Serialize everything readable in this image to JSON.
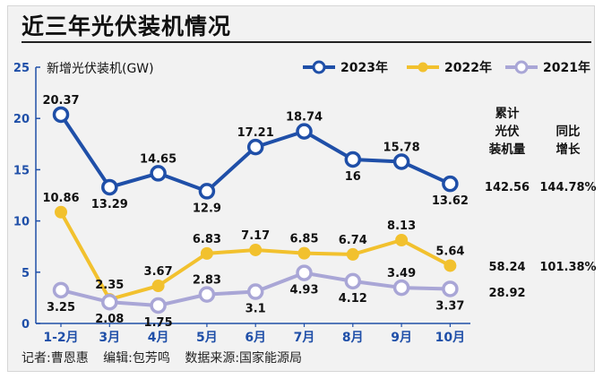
{
  "title": "近三年光伏装机情况",
  "credits": {
    "reporter": "记者:曹恩惠",
    "editor": "编辑:包芳鸣",
    "source": "数据来源:国家能源局"
  },
  "chart_data": {
    "type": "line",
    "title": "近三年光伏装机情况",
    "ylabel": "新增光伏装机(GW)",
    "xlabel": "",
    "ylim": [
      0,
      25
    ],
    "yticks": [
      0,
      5,
      10,
      15,
      20,
      25
    ],
    "categories": [
      "1-2月",
      "3月",
      "4月",
      "5月",
      "6月",
      "7月",
      "8月",
      "9月",
      "10月"
    ],
    "legend_position": "top-right",
    "series": [
      {
        "name": "2023年",
        "color": "#1f4fa8",
        "values": [
          20.37,
          13.29,
          14.65,
          12.9,
          17.21,
          18.74,
          16,
          15.78,
          13.62
        ],
        "labels": [
          "20.37",
          "13.29",
          "14.65",
          "12.9",
          "17.21",
          "18.74",
          "16",
          "15.78",
          "13.62"
        ],
        "label_pos": [
          "above",
          "below",
          "above",
          "below",
          "above",
          "above",
          "below",
          "above",
          "below"
        ]
      },
      {
        "name": "2022年",
        "color": "#f2c12e",
        "values": [
          10.86,
          2.35,
          3.67,
          6.83,
          7.17,
          6.85,
          6.74,
          8.13,
          5.64
        ],
        "labels": [
          "10.86",
          "2.35",
          "3.67",
          "6.83",
          "7.17",
          "6.85",
          "6.74",
          "8.13",
          "5.64"
        ],
        "label_pos": [
          "above",
          "above",
          "above",
          "above",
          "above",
          "above",
          "above",
          "above",
          "above"
        ]
      },
      {
        "name": "2021年",
        "color": "#a9a6d6",
        "values": [
          3.25,
          2.08,
          1.75,
          2.83,
          3.1,
          4.93,
          4.12,
          3.49,
          3.37
        ],
        "labels": [
          "3.25",
          "2.08",
          "1.75",
          "2.83",
          "3.1",
          "4.93",
          "4.12",
          "3.49",
          "3.37"
        ],
        "label_pos": [
          "below",
          "below",
          "below",
          "above",
          "below",
          "below",
          "below",
          "above",
          "below"
        ]
      }
    ],
    "summary": {
      "headers": {
        "cumulative": [
          "累计",
          "光伏",
          "装机量"
        ],
        "yoy": [
          "同比",
          "增长"
        ]
      },
      "rows": [
        {
          "series": "2023年",
          "cumulative": "142.56",
          "yoy": "144.78%"
        },
        {
          "series": "2022年",
          "cumulative": "58.24",
          "yoy": "101.38%"
        },
        {
          "series": "2021年",
          "cumulative": "28.92",
          "yoy": ""
        }
      ]
    }
  }
}
